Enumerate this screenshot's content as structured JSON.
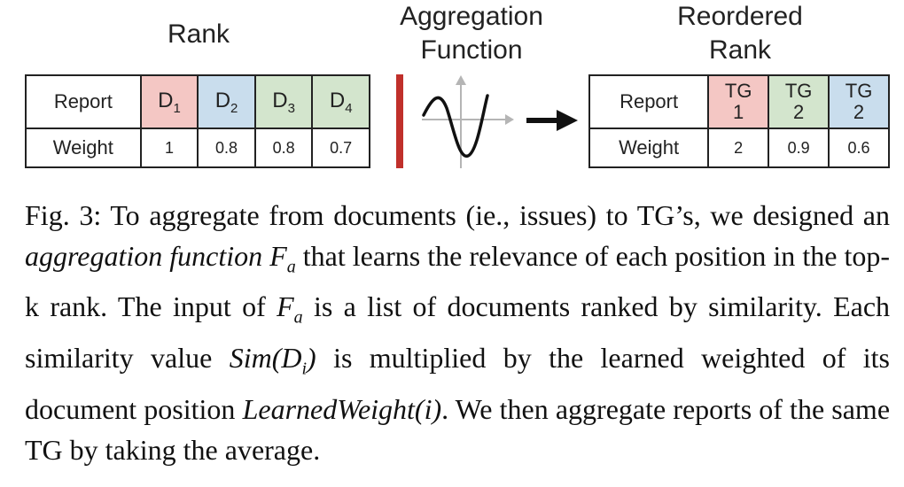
{
  "left": {
    "title": "Rank",
    "row_labels": [
      "Report",
      "Weight"
    ],
    "headers": [
      {
        "text": "D",
        "sub": "1",
        "color": "#f4c7c4"
      },
      {
        "text": "D",
        "sub": "2",
        "color": "#c9dded"
      },
      {
        "text": "D",
        "sub": "3",
        "color": "#d3e5cd"
      },
      {
        "text": "D",
        "sub": "4",
        "color": "#d3e5cd"
      }
    ],
    "weights": [
      "1",
      "0.8",
      "0.8",
      "0.7"
    ]
  },
  "middle": {
    "title_line1": "Aggregation",
    "title_line2": "Function",
    "bar_color": "#c0302b"
  },
  "right": {
    "title_line1": "Reordered",
    "title_line2": "Rank",
    "row_labels": [
      "Report",
      "Weight"
    ],
    "headers": [
      {
        "line1": "TG",
        "line2": "1",
        "color": "#f4c7c4"
      },
      {
        "line1": "TG",
        "line2": "2",
        "color": "#d3e5cd"
      },
      {
        "line1": "TG",
        "line2": "2",
        "color": "#c9dded"
      }
    ],
    "weights": [
      "2",
      "0.9",
      "0.6"
    ]
  },
  "caption": {
    "fig": "Fig. 3:",
    "t1": "To aggregate from documents (ie., issues) to TG’s, we designed an",
    "em1": "aggregation function",
    "F": "F",
    "a": "a",
    "t2": "that learns the relevance of each position in the top-k rank. The input of",
    "t3": "is a list of documents ranked by similarity. Each similarity value",
    "sim": "Sim",
    "sim_arg": "(D",
    "sim_i": "i",
    "sim_close": ")",
    "t4": "is multiplied by the learned weighted of its document position",
    "lw": "LearnedWeight",
    "lw_arg": "(i)",
    "t5": ". We then aggregate reports of the same TG by taking the average."
  }
}
